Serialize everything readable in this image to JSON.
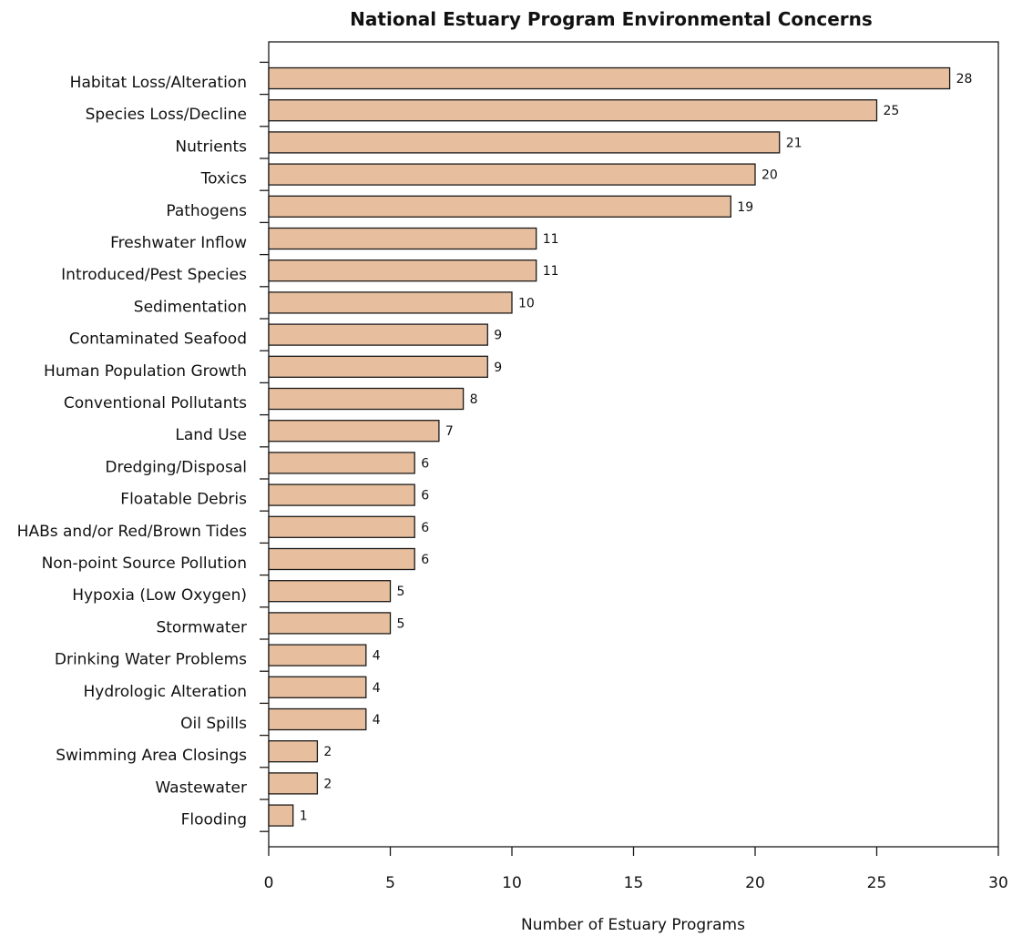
{
  "chart_data": {
    "type": "bar",
    "orientation": "horizontal",
    "title": "National Estuary Program Environmental Concerns",
    "xlabel": "Number of Estuary Programs",
    "ylabel": "",
    "xlim": [
      0,
      30
    ],
    "xticks": [
      0,
      5,
      10,
      15,
      20,
      25,
      30
    ],
    "grid": false,
    "bar_color": "#e8bf9e",
    "categories": [
      "Habitat Loss/Alteration",
      "Species Loss/Decline",
      "Nutrients",
      "Toxics",
      "Pathogens",
      "Freshwater Inflow",
      "Introduced/Pest Species",
      "Sedimentation",
      "Contaminated Seafood",
      "Human Population Growth",
      "Conventional Pollutants",
      "Land Use",
      "Dredging/Disposal",
      "Floatable Debris",
      "HABs and/or Red/Brown Tides",
      "Non-point Source Pollution",
      "Hypoxia (Low Oxygen)",
      "Stormwater",
      "Drinking Water Problems",
      "Hydrologic Alteration",
      "Oil Spills",
      "Swimming Area Closings",
      "Wastewater",
      "Flooding"
    ],
    "values": [
      28,
      25,
      21,
      20,
      19,
      11,
      11,
      10,
      9,
      9,
      8,
      7,
      6,
      6,
      6,
      6,
      5,
      5,
      4,
      4,
      4,
      2,
      2,
      1
    ]
  }
}
